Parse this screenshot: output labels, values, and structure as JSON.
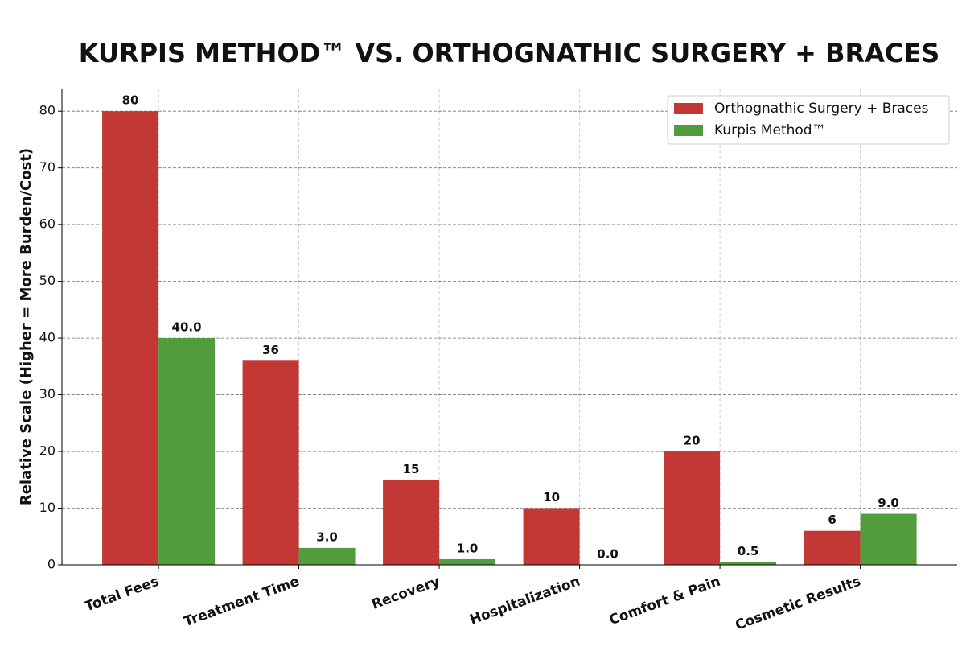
{
  "chart_data": {
    "type": "bar",
    "title": "KURPIS METHOD™ VS. ORTHOGNATHIC SURGERY + BRACES",
    "y_label": "Relative Scale (Higher = More Burden/Cost)",
    "categories": [
      "Total Fees",
      "Treatment Time",
      "Recovery",
      "Hospitalization",
      "Comfort & Pain",
      "Cosmetic Results"
    ],
    "series": [
      {
        "name": "Orthognathic Surgery + Braces",
        "color": "#c33834",
        "values": [
          80,
          36,
          15,
          10,
          20,
          6
        ]
      },
      {
        "name": "Kurpis Method™",
        "color": "#529c3e",
        "values": [
          40,
          3,
          1,
          0,
          0.5,
          9
        ],
        "value_labels": [
          "40.0",
          "3.0",
          "1.0",
          "0.0",
          "0.5",
          "9.0"
        ]
      }
    ],
    "ylim": [
      0,
      84
    ],
    "yticks": [
      0,
      10,
      20,
      30,
      40,
      50,
      60,
      70,
      80
    ],
    "grid": true,
    "legend": "upper right"
  }
}
